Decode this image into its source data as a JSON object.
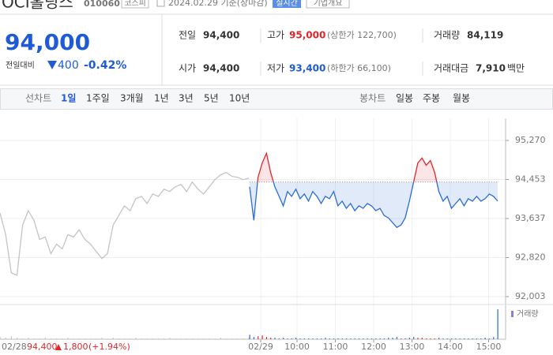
{
  "header": {
    "name": "OCI홀딩스",
    "code": "010060",
    "market": "코스피",
    "date": "2024.02.29 기준(장마감)",
    "realtime": "실시간",
    "company": "기업개요"
  },
  "price": {
    "current": "94,000",
    "change_label": "전일대비",
    "change": "400",
    "change_rate": "-0.42%"
  },
  "quote": {
    "prev_label": "전일",
    "prev": "94,400",
    "high_label": "고가",
    "high": "95,000",
    "upper_limit": "(상한가 122,700)",
    "volume_label": "거래량",
    "volume": "84,119",
    "open_label": "시가",
    "open": "94,400",
    "low_label": "저가",
    "low": "93,400",
    "lower_limit": "(하한가 66,100)",
    "amount_label": "거래대금",
    "amount": "7,910",
    "amount_unit": "백만"
  },
  "tabs": {
    "line_label": "선차트",
    "periods": [
      "1일",
      "1주일",
      "3개월",
      "1년",
      "3년",
      "5년",
      "10년"
    ],
    "candle_label": "봉차트",
    "candle_periods": [
      "일봉",
      "주봉",
      "월봉"
    ]
  },
  "chart_data": {
    "type": "line",
    "ylim": [
      91904,
      95732
    ],
    "yticks": [
      {
        "value": 95270,
        "label": "95,270"
      },
      {
        "value": 94453,
        "label": "94,453"
      },
      {
        "value": 93637,
        "label": "93,637"
      },
      {
        "value": 92820,
        "label": "92,820"
      },
      {
        "value": 92003,
        "label": "92,003"
      }
    ],
    "grid": true,
    "baseline": 94400,
    "up_color": "#e0262a",
    "down_color": "#2b6cd6",
    "xticks": [
      "02/29",
      "10:00",
      "11:00",
      "12:00",
      "13:00",
      "14:00",
      "15:00"
    ],
    "volume_label": "거래량",
    "prev_summary": {
      "date": "02/28",
      "close": "94,400",
      "change": "1,800",
      "rate": "(+1.94%)"
    },
    "series": [
      {
        "name": "02/28",
        "color": "#c4c4c4",
        "values": [
          93750,
          93300,
          92500,
          92450,
          93500,
          93800,
          93600,
          93200,
          93250,
          92900,
          93100,
          93000,
          93300,
          93250,
          93400,
          93200,
          93100,
          92950,
          92800,
          92900,
          93500,
          93700,
          93900,
          93800,
          94050,
          94100,
          93950,
          94150,
          94100,
          94250,
          94200,
          94300,
          94350,
          94200,
          94400,
          94250,
          94150,
          94300,
          94450,
          94550,
          94600,
          94520,
          94500,
          94450,
          94480
        ],
        "volume": [
          3,
          2,
          4,
          2,
          1,
          2,
          1,
          1,
          2,
          1,
          1,
          1,
          2,
          1,
          1,
          1,
          1,
          1,
          2,
          1,
          2,
          1,
          1,
          1,
          2,
          1,
          1,
          1,
          1,
          1,
          2,
          1,
          1,
          1,
          1,
          1,
          1,
          1,
          1,
          2,
          1,
          1,
          1,
          1,
          2
        ]
      },
      {
        "name": "02/29",
        "color": "#2b6cd6",
        "values": [
          94300,
          93600,
          94500,
          94800,
          95000,
          94600,
          94300,
          94100,
          93900,
          94200,
          94100,
          94250,
          94050,
          94150,
          94000,
          94200,
          94100,
          93950,
          94100,
          94050,
          94200,
          93900,
          94000,
          93850,
          93950,
          93800,
          93900,
          93850,
          93950,
          93900,
          93800,
          93850,
          93700,
          93650,
          93550,
          93450,
          93500,
          93650,
          94000,
          94400,
          94800,
          94900,
          94750,
          94850,
          94600,
          94200,
          94000,
          94100,
          93850,
          93950,
          94050,
          93900,
          94050,
          94000,
          94100,
          94000,
          94050,
          94150,
          94100,
          94000
        ],
        "volume": [
          6,
          3,
          4,
          5,
          3,
          2,
          2,
          1,
          2,
          1,
          1,
          2,
          1,
          1,
          1,
          1,
          1,
          1,
          2,
          1,
          1,
          1,
          1,
          1,
          1,
          1,
          1,
          1,
          1,
          1,
          1,
          1,
          1,
          2,
          2,
          3,
          1,
          1,
          2,
          3,
          2,
          2,
          1,
          1,
          1,
          2,
          1,
          1,
          1,
          1,
          1,
          1,
          1,
          1,
          1,
          1,
          2,
          1,
          3,
          40
        ]
      }
    ]
  }
}
